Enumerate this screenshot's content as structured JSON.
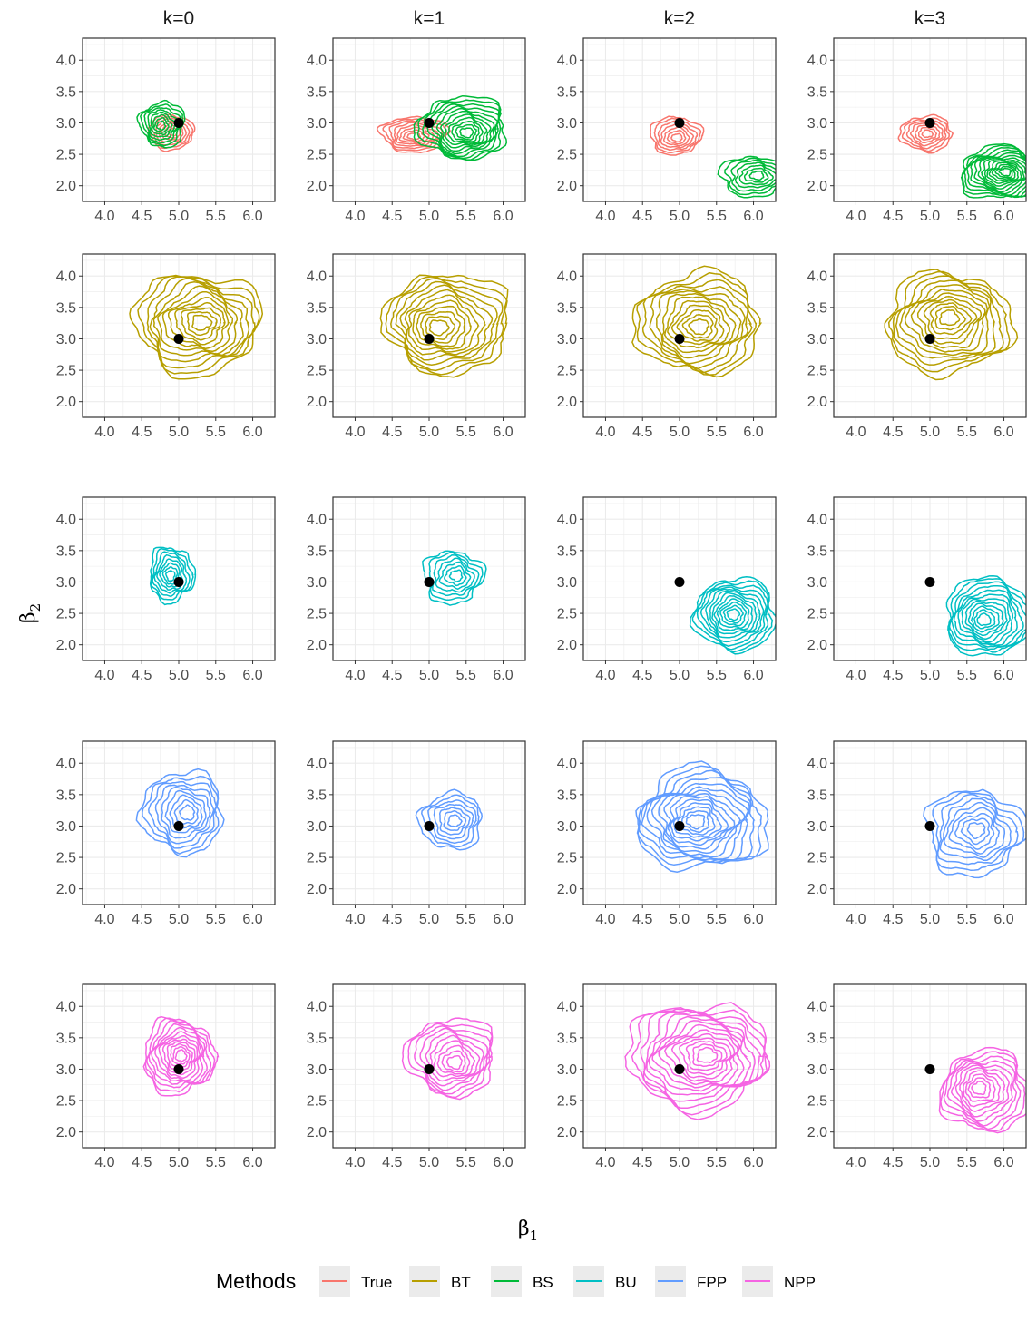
{
  "chart_data": {
    "type": "contour",
    "columns": [
      "k=0",
      "k=1",
      "k=2",
      "k=3"
    ],
    "xlabel": "β1",
    "ylabel": "β2",
    "x_ticks": [
      4.0,
      4.5,
      5.0,
      5.5,
      6.0
    ],
    "y_ticks": [
      2.0,
      2.5,
      3.0,
      3.5,
      4.0
    ],
    "x_tick_labels": [
      "4.0",
      "4.5",
      "5.0",
      "5.5",
      "6.0"
    ],
    "y_tick_labels": [
      "2.0",
      "2.5",
      "3.0",
      "3.5",
      "4.0"
    ],
    "xlim": [
      3.7,
      6.3
    ],
    "ylim": [
      1.75,
      4.35
    ],
    "grid": true,
    "true_point": {
      "x": 5.0,
      "y": 3.0
    },
    "legend": {
      "title": "Methods",
      "position": "bottom",
      "entries": [
        {
          "name": "True",
          "color": "#F8766D"
        },
        {
          "name": "BT",
          "color": "#B79F00"
        },
        {
          "name": "BS",
          "color": "#00BA38"
        },
        {
          "name": "BU",
          "color": "#00BFC4"
        },
        {
          "name": "FPP",
          "color": "#619CFF"
        },
        {
          "name": "NPP",
          "color": "#F564E3"
        }
      ]
    },
    "rows": [
      {
        "series": [
          "True",
          "BS"
        ],
        "panels": [
          [
            {
              "method": "True",
              "cx": 4.9,
              "cy": 2.85,
              "rx": 0.3,
              "ry": 0.28,
              "levels": 7
            },
            {
              "method": "BS",
              "cx": 4.78,
              "cy": 2.98,
              "rx": 0.3,
              "ry": 0.36,
              "levels": 8
            }
          ],
          [
            {
              "method": "True",
              "cx": 4.8,
              "cy": 2.82,
              "rx": 0.45,
              "ry": 0.28,
              "levels": 8
            },
            {
              "method": "BS",
              "cx": 5.45,
              "cy": 2.92,
              "rx": 0.6,
              "ry": 0.5,
              "levels": 12
            }
          ],
          [
            {
              "method": "True",
              "cx": 4.95,
              "cy": 2.8,
              "rx": 0.35,
              "ry": 0.3,
              "levels": 7
            },
            {
              "method": "BS",
              "cx": 6.0,
              "cy": 2.15,
              "rx": 0.45,
              "ry": 0.32,
              "levels": 7
            }
          ],
          [
            {
              "method": "True",
              "cx": 4.95,
              "cy": 2.83,
              "rx": 0.35,
              "ry": 0.28,
              "levels": 7
            },
            {
              "method": "BS",
              "cx": 5.95,
              "cy": 2.2,
              "rx": 0.55,
              "ry": 0.42,
              "levels": 14
            }
          ]
        ]
      },
      {
        "series": [
          "BT"
        ],
        "panels": [
          [
            {
              "method": "BT",
              "cx": 5.25,
              "cy": 3.25,
              "rx": 0.85,
              "ry": 0.8,
              "levels": 12
            }
          ],
          [
            {
              "method": "BT",
              "cx": 5.25,
              "cy": 3.25,
              "rx": 0.85,
              "ry": 0.8,
              "levels": 12
            }
          ],
          [
            {
              "method": "BT",
              "cx": 5.25,
              "cy": 3.25,
              "rx": 0.85,
              "ry": 0.8,
              "levels": 12
            }
          ],
          [
            {
              "method": "BT",
              "cx": 5.25,
              "cy": 3.25,
              "rx": 0.85,
              "ry": 0.8,
              "levels": 12
            }
          ]
        ]
      },
      {
        "series": [
          "BU"
        ],
        "panels": [
          [
            {
              "method": "BU",
              "cx": 4.9,
              "cy": 3.12,
              "rx": 0.3,
              "ry": 0.44,
              "levels": 8
            }
          ],
          [
            {
              "method": "BU",
              "cx": 5.32,
              "cy": 3.08,
              "rx": 0.4,
              "ry": 0.42,
              "levels": 7
            }
          ],
          [
            {
              "method": "BU",
              "cx": 5.75,
              "cy": 2.48,
              "rx": 0.55,
              "ry": 0.58,
              "levels": 12
            }
          ],
          [
            {
              "method": "BU",
              "cx": 5.8,
              "cy": 2.45,
              "rx": 0.6,
              "ry": 0.62,
              "levels": 12
            }
          ]
        ]
      },
      {
        "series": [
          "FPP"
        ],
        "panels": [
          [
            {
              "method": "FPP",
              "cx": 5.05,
              "cy": 3.22,
              "rx": 0.55,
              "ry": 0.65,
              "levels": 9
            }
          ],
          [
            {
              "method": "FPP",
              "cx": 5.3,
              "cy": 3.08,
              "rx": 0.42,
              "ry": 0.45,
              "levels": 7
            }
          ],
          [
            {
              "method": "FPP",
              "cx": 5.3,
              "cy": 3.1,
              "rx": 0.88,
              "ry": 0.8,
              "levels": 14
            }
          ],
          [
            {
              "method": "FPP",
              "cx": 5.6,
              "cy": 2.9,
              "rx": 0.65,
              "ry": 0.68,
              "levels": 9
            }
          ]
        ]
      },
      {
        "series": [
          "NPP"
        ],
        "panels": [
          [
            {
              "method": "NPP",
              "cx": 5.0,
              "cy": 3.2,
              "rx": 0.48,
              "ry": 0.6,
              "levels": 12
            }
          ],
          [
            {
              "method": "NPP",
              "cx": 5.3,
              "cy": 3.2,
              "rx": 0.6,
              "ry": 0.62,
              "levels": 10
            }
          ],
          [
            {
              "method": "NPP",
              "cx": 5.25,
              "cy": 3.2,
              "rx": 0.95,
              "ry": 0.85,
              "levels": 14
            }
          ],
          [
            {
              "method": "NPP",
              "cx": 5.75,
              "cy": 2.65,
              "rx": 0.6,
              "ry": 0.65,
              "levels": 11
            }
          ]
        ]
      }
    ]
  }
}
